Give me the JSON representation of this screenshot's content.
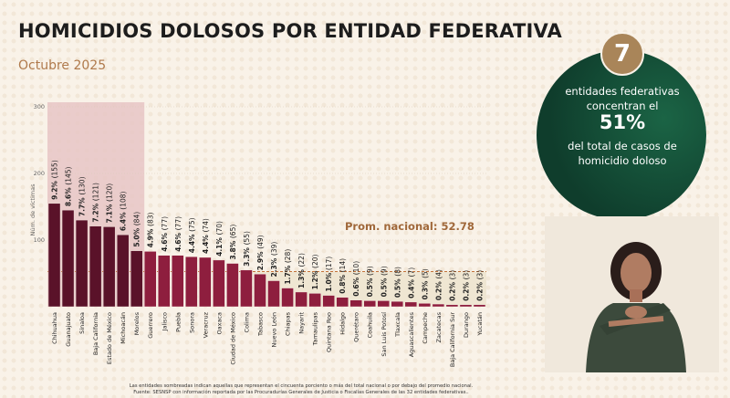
{
  "title": "HOMICIDIOS DOLOSOS POR ENTIDAD FEDERATIVA",
  "subtitle": "Octubre 2025",
  "highlight": {
    "number": "7",
    "line1": "entidades federativas",
    "line2": "concentran el",
    "percent": "51%",
    "line3": "del total de casos de",
    "line4": "homicidio doloso"
  },
  "footnote": {
    "line1": "Las entidades sombreadas indican aquellas que representan el cincuenta porciento o más del total nacional o por debajo del promedio nacional.",
    "line2": "Fuente: SESNSP con información reportada por las Procuradurías Generales de Justicia o Fiscalías Generales de las 32 entidades federativas.."
  },
  "colors": {
    "top_bars": "#5a1229",
    "other_bars": "#8e1e3e",
    "top_shade": "#e8c6c6",
    "below_avg_shade": "#efe6d2",
    "avg_line": "#c4733a",
    "circle": "#0f3d2c",
    "badge": "#a98559"
  },
  "interpreter_video": "sign-language-interpreter",
  "chart_data": {
    "type": "bar",
    "ylabel": "Núm. de víctimas",
    "ylim": [
      0,
      300
    ],
    "yticks": [
      100,
      200,
      300
    ],
    "average": {
      "label": "Prom. nacional: 52.78",
      "value": 52.78
    },
    "top_count": 7,
    "categories": [
      "Chihuahua",
      "Guanajuato",
      "Sinaloa",
      "Baja California",
      "Estado de México",
      "Michoacán",
      "Morelos",
      "Guerrero",
      "Jalisco",
      "Puebla",
      "Sonora",
      "Veracruz",
      "Oaxaca",
      "Ciudad de México",
      "Colima",
      "Tabasco",
      "Nuevo León",
      "Chiapas",
      "Nayarit",
      "Tamaulipas",
      "Quintana Roo",
      "Hidalgo",
      "Querétaro",
      "Coahuila",
      "San Luis Potosí",
      "Tlaxcala",
      "Aguascalientes",
      "Campeche",
      "Zacatecas",
      "Baja California Sur",
      "Durango",
      "Yucatán"
    ],
    "values": [
      155,
      145,
      130,
      121,
      120,
      108,
      84,
      83,
      77,
      77,
      75,
      74,
      70,
      65,
      55,
      49,
      39,
      28,
      22,
      20,
      17,
      14,
      10,
      9,
      9,
      8,
      7,
      5,
      4,
      3,
      3,
      3
    ],
    "percents": [
      "9.2%",
      "8.6%",
      "7.7%",
      "7.2%",
      "7.1%",
      "6.4%",
      "5.0%",
      "4.9%",
      "4.6%",
      "4.6%",
      "4.4%",
      "4.4%",
      "4.1%",
      "3.8%",
      "3.3%",
      "2.9%",
      "2.3%",
      "1.7%",
      "1.3%",
      "1.2%",
      "1.0%",
      "0.8%",
      "0.6%",
      "0.5%",
      "0.5%",
      "0.5%",
      "0.4%",
      "0.3%",
      "0.2%",
      "0.2%",
      "0.2%",
      "0.2%"
    ]
  }
}
